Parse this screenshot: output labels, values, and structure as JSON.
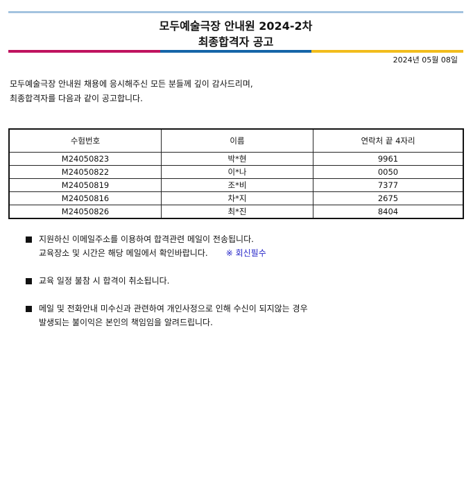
{
  "colors": {
    "top_line": "#a3c3df",
    "bar": [
      "#c0135f",
      "#1565a8",
      "#f2bd1c"
    ],
    "note": "#2323c8"
  },
  "title": {
    "line1": "모두예술극장 안내원 2024-2차",
    "line2": "최종합격자 공고"
  },
  "date": "2024년 05월 08일",
  "intro": [
    "모두예술극장 안내원 채용에 응시해주신 모든 분들께 깊이 감사드리며,",
    "최종합격자를 다음과 같이 공고합니다."
  ],
  "table": {
    "headers": [
      "수험번호",
      "이름",
      "연락처 끝 4자리"
    ],
    "rows": [
      [
        "M24050823",
        "박*현",
        "9961"
      ],
      [
        "M24050822",
        "이*나",
        "0050"
      ],
      [
        "M24050819",
        "조*비",
        "7377"
      ],
      [
        "M24050816",
        "차*지",
        "2675"
      ],
      [
        "M24050826",
        "최*진",
        "8404"
      ]
    ]
  },
  "notices": [
    {
      "lines": [
        "지원하신 이메일주소를 이용하여 합격관련 메일이 전송됩니다.",
        "교육장소 및 시간은 해당 메일에서 확인바랍니다."
      ],
      "note": "※ 회신필수"
    },
    {
      "lines": [
        "교육 일정 불참 시 합격이 취소됩니다."
      ]
    },
    {
      "lines": [
        "메일 및 전화안내 미수신과 관련하여 개인사정으로 인해 수신이 되지않는 경우",
        "발생되는 불이익은 본인의 책임임을 알려드립니다."
      ]
    }
  ]
}
